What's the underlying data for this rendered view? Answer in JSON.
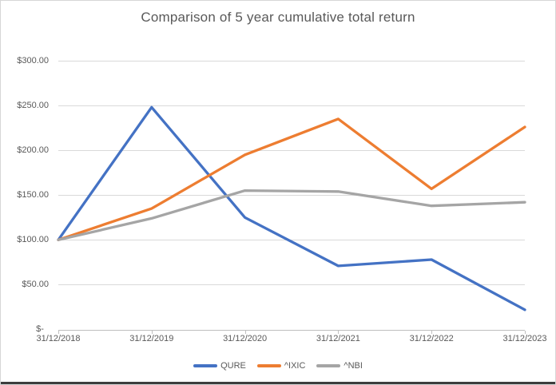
{
  "chart_data": {
    "type": "line",
    "title": "Comparison of 5 year cumulative total return",
    "categories": [
      "31/12/2018",
      "31/12/2019",
      "31/12/2020",
      "31/12/2021",
      "31/12/2022",
      "31/12/2023"
    ],
    "series": [
      {
        "name": "QURE",
        "color": "#4472C4",
        "values": [
          100,
          248,
          125,
          71,
          78,
          22
        ]
      },
      {
        "name": "^IXIC",
        "color": "#ED7D31",
        "values": [
          100,
          135,
          195,
          235,
          157,
          226
        ]
      },
      {
        "name": "^NBI",
        "color": "#A5A5A5",
        "values": [
          100,
          124,
          155,
          154,
          138,
          142
        ]
      }
    ],
    "ylim": [
      0,
      300
    ],
    "y_step": 50,
    "y_tick_labels": [
      "$-  ",
      "$50.00",
      "$100.00",
      "$150.00",
      "$200.00",
      "$250.00",
      "$300.00"
    ],
    "xlabel": "",
    "ylabel": "",
    "grid": true,
    "legend_position": "bottom",
    "gridline_color": "#d9d9d9",
    "axis_color": "#bfbfbf",
    "text_color": "#595959"
  }
}
